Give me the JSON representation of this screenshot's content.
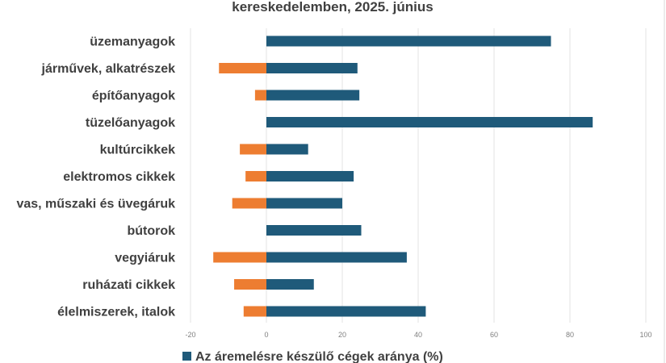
{
  "chart_data": {
    "type": "bar",
    "orientation": "horizontal",
    "title": "kereskedelemben, 2025. június",
    "categories": [
      "üzemanyagok",
      "járművek, alkatrészek",
      "építőanyagok",
      "tüzelőanyagok",
      "kultúrcikkek",
      "elektromos cikkek",
      "vas, műszaki és üvegáruk",
      "bútorok",
      "vegyiáruk",
      "ruházati cikkek",
      "élelmiszerek, italok"
    ],
    "series": [
      {
        "name": "Az áremelésre készülő cégek aránya (%)",
        "color": "#1f5a7a",
        "values": [
          75,
          24,
          24.5,
          86,
          11,
          23,
          20,
          25,
          37,
          12.5,
          42
        ]
      },
      {
        "color": "#ed7d31",
        "values": [
          0,
          -12.5,
          -3,
          0,
          -7,
          -5.5,
          -9,
          0,
          -14,
          -8.5,
          -6
        ]
      }
    ],
    "xticks": [
      "-20",
      "0",
      "20",
      "40",
      "60",
      "80",
      "100"
    ],
    "xlim": [
      -20,
      100
    ],
    "grid": true,
    "legend_position": "bottom"
  }
}
